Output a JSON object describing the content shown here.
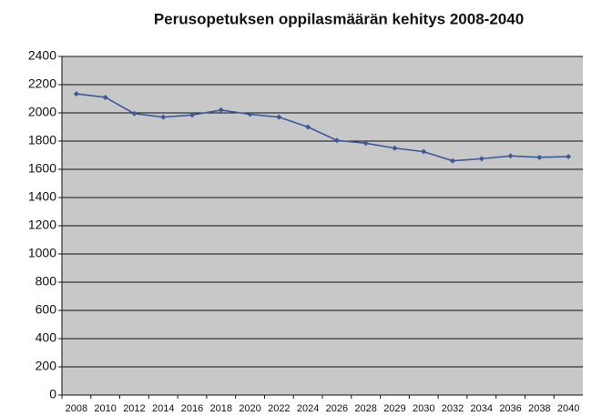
{
  "chart_data": {
    "type": "line",
    "title": "Perusopetuksen oppilasmäärän kehitys 2008-2040",
    "categories": [
      "2008",
      "2010",
      "2012",
      "2014",
      "2016",
      "2018",
      "2020",
      "2022",
      "2024",
      "2026",
      "2028",
      "2029",
      "2030",
      "2032",
      "2034",
      "2036",
      "2038",
      "2040"
    ],
    "series": [
      {
        "name": null,
        "color": "#3a5a9a",
        "values": [
          2135,
          2110,
          1995,
          1970,
          1985,
          2020,
          1990,
          1970,
          1900,
          1805,
          1785,
          1750,
          1725,
          1660,
          1675,
          1695,
          1685,
          1690
        ]
      }
    ],
    "ylim": [
      0,
      2400
    ],
    "yticks": [
      0,
      200,
      400,
      600,
      800,
      1000,
      1200,
      1400,
      1600,
      1800,
      2000,
      2200,
      2400
    ],
    "grid": true,
    "background": "#c8c8c8"
  }
}
